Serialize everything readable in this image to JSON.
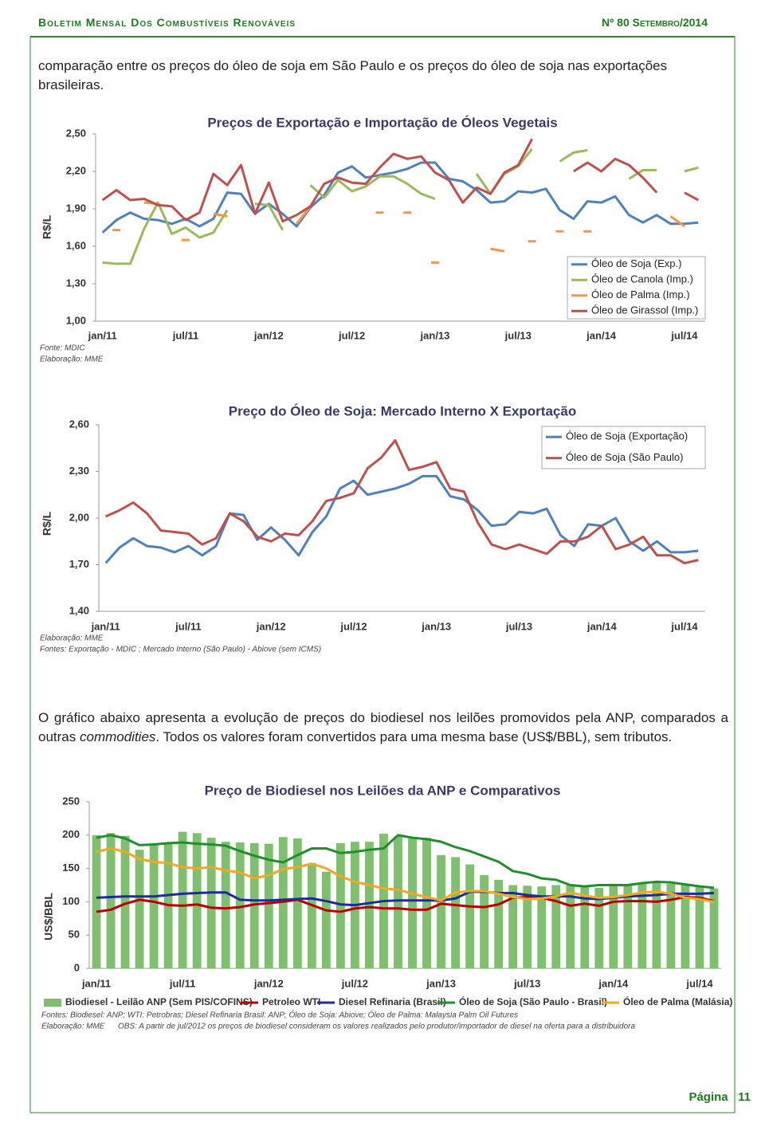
{
  "header": {
    "title": "Boletim Mensal Dos Combustíveis Renováveis",
    "issue": "Nº 80 Setembro/2014"
  },
  "paragraphs": [
    "comparação entre os preços do óleo de soja em São Paulo e os preços do óleo de soja nas exportações brasileiras.",
    [
      "O gráfico abaixo apresenta a evolução de preços do biodiesel nos leilões promovidos pela ANP, comparados  a outras ",
      "commodities",
      ". Todos os valores foram convertidos para uma mesma base (US$/BBL), sem tributos."
    ]
  ],
  "chart_data": [
    {
      "type": "line",
      "title": "Preços de Exportação e Importação de Óleos Vegetais",
      "y_label": "R$/L",
      "categories": [
        "jan/11",
        null,
        null,
        null,
        null,
        null,
        "jul/11",
        null,
        null,
        null,
        null,
        null,
        "jan/12",
        null,
        null,
        null,
        null,
        null,
        "jul/12",
        null,
        null,
        null,
        null,
        null,
        "jan/13",
        null,
        null,
        null,
        null,
        null,
        "jul/13",
        null,
        null,
        null,
        null,
        null,
        "jan/14",
        null,
        null,
        null,
        null,
        null,
        "jul/14",
        null
      ],
      "series": [
        {
          "name": "Óleo de Soja (Exp.)",
          "color": "#4f81bd",
          "values": [
            1.71,
            1.81,
            1.87,
            1.82,
            1.81,
            1.78,
            1.82,
            1.76,
            1.82,
            2.03,
            2.02,
            1.86,
            1.94,
            1.86,
            1.76,
            1.91,
            2.01,
            2.19,
            2.24,
            2.15,
            2.17,
            2.19,
            2.22,
            2.27,
            2.27,
            2.14,
            2.12,
            2.05,
            1.95,
            1.96,
            2.04,
            2.03,
            2.06,
            1.89,
            1.82,
            1.96,
            1.95,
            2.0,
            1.85,
            1.79,
            1.85,
            1.78,
            1.78,
            1.79
          ]
        },
        {
          "name": "Óleo de Canola (Imp.)",
          "color": "#9bbb59",
          "values": [
            1.47,
            1.46,
            1.46,
            1.74,
            1.95,
            1.7,
            1.75,
            1.67,
            1.71,
            1.89,
            null,
            1.94,
            1.93,
            1.73,
            null,
            2.09,
            1.99,
            2.13,
            2.04,
            2.08,
            2.16,
            2.16,
            2.1,
            2.02,
            1.98,
            null,
            null,
            2.18,
            2.02,
            2.18,
            2.24,
            2.38,
            null,
            2.28,
            2.35,
            2.37,
            null,
            null,
            2.14,
            2.21,
            2.21,
            null,
            2.2,
            2.23
          ]
        },
        {
          "name": "Óleo de Palma (Imp.)",
          "color": "#f79646",
          "values": [
            null,
            1.73,
            null,
            1.95,
            1.94,
            null,
            1.65,
            null,
            1.86,
            1.84,
            null,
            null,
            null,
            null,
            1.78,
            1.92,
            null,
            null,
            null,
            null,
            1.87,
            null,
            1.87,
            null,
            1.47,
            null,
            null,
            null,
            1.58,
            1.56,
            null,
            1.64,
            null,
            1.72,
            null,
            1.72,
            null,
            null,
            null,
            null,
            null,
            1.84,
            1.76,
            null
          ]
        },
        {
          "name": "Óleo de Girassol (Imp.)",
          "color": "#c0504d",
          "values": [
            1.97,
            2.05,
            1.97,
            1.98,
            1.93,
            1.92,
            1.81,
            1.87,
            2.18,
            2.09,
            2.25,
            1.86,
            2.11,
            1.8,
            1.85,
            1.92,
            2.1,
            2.15,
            2.11,
            2.1,
            2.23,
            2.34,
            2.3,
            2.32,
            2.19,
            2.13,
            1.95,
            2.07,
            2.02,
            2.19,
            2.25,
            2.46,
            null,
            null,
            2.2,
            2.27,
            2.2,
            2.3,
            2.25,
            2.15,
            2.03,
            null,
            2.03,
            1.97
          ]
        }
      ],
      "ylim": [
        1.0,
        2.5
      ],
      "yticks": [
        {
          "value": 1.0,
          "label": "1,00"
        },
        {
          "value": 1.3,
          "label": "1,30"
        },
        {
          "value": 1.6,
          "label": "1,60"
        },
        {
          "value": 1.9,
          "label": "1,90"
        },
        {
          "value": 2.2,
          "label": "2,20"
        },
        {
          "value": 2.5,
          "label": "2,50"
        }
      ],
      "grid": false,
      "legend": "bottom-right",
      "notes": [
        "Fonte: MDIC",
        "Elaboração: MME"
      ]
    },
    {
      "type": "line",
      "title": "Preço do Óleo de Soja: Mercado Interno X Exportação",
      "y_label": "R$/L",
      "categories": [
        "jan/11",
        null,
        null,
        null,
        null,
        null,
        "jul/11",
        null,
        null,
        null,
        null,
        null,
        "jan/12",
        null,
        null,
        null,
        null,
        null,
        "jul/12",
        null,
        null,
        null,
        null,
        null,
        "jan/13",
        null,
        null,
        null,
        null,
        null,
        "jul/13",
        null,
        null,
        null,
        null,
        null,
        "jan/14",
        null,
        null,
        null,
        null,
        null,
        "jul/14",
        null
      ],
      "series": [
        {
          "name": "Óleo de Soja (Exportação)",
          "color": "#4f81bd",
          "values": [
            1.71,
            1.81,
            1.87,
            1.82,
            1.81,
            1.78,
            1.82,
            1.76,
            1.82,
            2.03,
            2.02,
            1.86,
            1.94,
            1.86,
            1.76,
            1.91,
            2.01,
            2.19,
            2.24,
            2.15,
            2.17,
            2.19,
            2.22,
            2.27,
            2.27,
            2.14,
            2.12,
            2.05,
            1.95,
            1.96,
            2.04,
            2.03,
            2.06,
            1.89,
            1.82,
            1.96,
            1.95,
            2.0,
            1.85,
            1.79,
            1.85,
            1.78,
            1.78,
            1.79
          ]
        },
        {
          "name": "Óleo de Soja (São Paulo)",
          "color": "#c0504d",
          "values": [
            2.01,
            2.05,
            2.1,
            2.03,
            1.92,
            1.91,
            1.9,
            1.83,
            1.87,
            2.03,
            1.98,
            1.88,
            1.85,
            1.9,
            1.89,
            1.98,
            2.11,
            2.13,
            2.16,
            2.32,
            2.39,
            2.5,
            2.31,
            2.33,
            2.36,
            2.19,
            2.17,
            1.97,
            1.83,
            1.8,
            1.83,
            1.8,
            1.77,
            1.85,
            1.85,
            1.88,
            1.95,
            1.8,
            1.83,
            1.88,
            1.76,
            1.76,
            1.71,
            1.73
          ]
        }
      ],
      "ylim": [
        1.4,
        2.6
      ],
      "yticks": [
        {
          "value": 1.4,
          "label": "1,40"
        },
        {
          "value": 1.7,
          "label": "1,70"
        },
        {
          "value": 2.0,
          "label": "2,00"
        },
        {
          "value": 2.3,
          "label": "2,30"
        },
        {
          "value": 2.6,
          "label": "2,60"
        }
      ],
      "grid": false,
      "legend": "top-right",
      "notes": [
        "Elaboração: MME",
        "Fontes: Exportação - MDIC ; Mercado Interno (São Paulo) - Abiove (sem ICMS)"
      ]
    },
    {
      "type": "bar",
      "title": "Preço de Biodiesel nos Leilões da ANP e Comparativos",
      "y_label": "US$/BBL",
      "categories": [
        "jan/11",
        null,
        null,
        null,
        null,
        null,
        "jul/11",
        null,
        null,
        null,
        null,
        null,
        "jan/12",
        null,
        null,
        null,
        null,
        null,
        "jul/12",
        null,
        null,
        null,
        null,
        null,
        "jan/13",
        null,
        null,
        null,
        null,
        null,
        "jul/13",
        null,
        null,
        null,
        null,
        null,
        "jan/14",
        null,
        null,
        null,
        null,
        null,
        "jul/14",
        null
      ],
      "series": [
        {
          "name": "Biodiesel - Leilão ANP (Sem PIS/COFINS)",
          "type": "bar",
          "color": "#7fbf6f",
          "values": [
            200,
            203,
            199,
            178,
            185,
            187,
            205,
            203,
            196,
            190,
            189,
            188,
            187,
            197,
            195,
            158,
            145,
            188,
            190,
            190,
            202,
            198,
            197,
            196,
            170,
            167,
            156,
            140,
            133,
            125,
            124,
            123,
            125,
            125,
            124,
            121,
            127,
            126,
            128,
            128,
            127,
            125,
            122,
            120
          ]
        },
        {
          "name": "Petroleo WTI",
          "type": "line",
          "color": "#c00000",
          "values": [
            85,
            88,
            97,
            103,
            100,
            95,
            94,
            96,
            91,
            90,
            92,
            96,
            98,
            100,
            103,
            95,
            87,
            85,
            90,
            92,
            90,
            90,
            88,
            88,
            97,
            95,
            93,
            92,
            96,
            106,
            107,
            106,
            101,
            94,
            97,
            94,
            100,
            101,
            101,
            100,
            103,
            107,
            106,
            101
          ]
        },
        {
          "name": "Diesel Refinaria (Brasil)",
          "type": "line",
          "color": "#1f2a9c",
          "values": [
            106,
            107,
            108,
            108,
            108,
            110,
            112,
            113,
            114,
            114,
            103,
            102,
            102,
            103,
            104,
            105,
            101,
            96,
            95,
            98,
            101,
            102,
            102,
            102,
            102,
            105,
            115,
            115,
            113,
            113,
            110,
            108,
            108,
            108,
            105,
            104,
            106,
            108,
            109,
            110,
            112,
            112,
            112,
            113
          ]
        },
        {
          "name": "Óleo de Soja (São Paulo - Brasil)",
          "type": "line",
          "color": "#1e8f2a",
          "values": [
            196,
            200,
            195,
            185,
            186,
            188,
            189,
            187,
            186,
            184,
            176,
            169,
            163,
            159,
            170,
            180,
            180,
            173,
            175,
            178,
            180,
            200,
            196,
            194,
            190,
            182,
            176,
            168,
            160,
            146,
            142,
            135,
            133,
            125,
            123,
            125,
            125,
            125,
            128,
            130,
            129,
            126,
            123,
            121
          ]
        },
        {
          "name": "Óleo de Palma (Malásia)",
          "type": "line",
          "color": "#f5a623",
          "values": [
            175,
            180,
            175,
            164,
            160,
            158,
            152,
            150,
            152,
            147,
            144,
            135,
            140,
            149,
            152,
            157,
            150,
            138,
            130,
            125,
            120,
            118,
            112,
            107,
            102,
            114,
            116,
            116,
            112,
            107,
            104,
            105,
            108,
            114,
            109,
            106,
            107,
            110,
            114,
            115,
            112,
            106,
            104,
            100
          ]
        }
      ],
      "ylim": [
        0,
        250
      ],
      "yticks": [
        0,
        50,
        100,
        150,
        200,
        250
      ],
      "grid": false,
      "legend": "bottom",
      "notes": [
        "Fontes: Biodiesel: ANP; WTI: Petrobras; Diesel Refinaria Brasil: ANP; Óleo de Soja: Abiove; Óleo de Palma: Malaysia Palm Oil Futures",
        "Elaboração:   MME",
        "OBS: A partir de jul/2012 os preços de biodiesel consideram os valores realizados pelo produtor/importador de diesel na oferta para a distribuidora"
      ]
    }
  ],
  "footer": {
    "label": "Página",
    "page_number": 11
  }
}
